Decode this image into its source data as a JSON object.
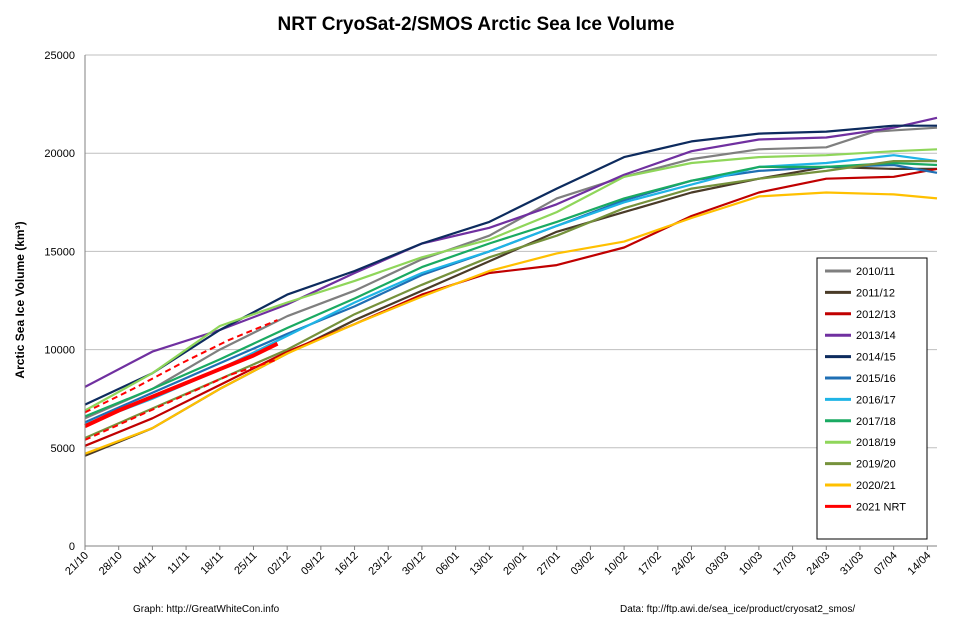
{
  "chart_data": {
    "type": "line",
    "title": "NRT CryoSat-2/SMOS Arctic Sea Ice Volume",
    "ylabel": "Arctic Sea Ice Volume (km³)",
    "xlabel": "",
    "ylim": [
      0,
      25000
    ],
    "yticks": [
      0,
      5000,
      10000,
      15000,
      20000,
      25000
    ],
    "xlim_days": [
      0,
      177
    ],
    "xticks": [
      "21/10",
      "28/10",
      "04/11",
      "11/11",
      "18/11",
      "25/11",
      "02/12",
      "09/12",
      "16/12",
      "23/12",
      "30/12",
      "06/01",
      "13/01",
      "20/01",
      "27/01",
      "03/02",
      "10/02",
      "17/02",
      "24/02",
      "03/03",
      "10/03",
      "17/03",
      "24/03",
      "31/03",
      "07/04",
      "14/04"
    ],
    "xtick_step_days": 7,
    "grid": "horizontal",
    "legend_position": "right",
    "series": [
      {
        "name": "2010/11",
        "color": "#7f7f7f",
        "style": "solid",
        "points": [
          [
            0,
            6500
          ],
          [
            14,
            8000
          ],
          [
            28,
            10000
          ],
          [
            42,
            11700
          ],
          [
            56,
            13000
          ],
          [
            70,
            14600
          ],
          [
            84,
            15800
          ],
          [
            98,
            17700
          ],
          [
            112,
            18800
          ],
          [
            126,
            19700
          ],
          [
            140,
            20200
          ],
          [
            154,
            20300
          ],
          [
            164,
            21100
          ],
          [
            177,
            21300
          ]
        ]
      },
      {
        "name": "2011/12",
        "color": "#4a3b28",
        "style": "solid",
        "points": [
          [
            0,
            4600
          ],
          [
            14,
            6000
          ],
          [
            28,
            8000
          ],
          [
            42,
            9800
          ],
          [
            56,
            11500
          ],
          [
            70,
            13000
          ],
          [
            84,
            14500
          ],
          [
            98,
            16000
          ],
          [
            112,
            17000
          ],
          [
            126,
            18000
          ],
          [
            140,
            18700
          ],
          [
            154,
            19300
          ],
          [
            168,
            19200
          ],
          [
            177,
            19200
          ]
        ]
      },
      {
        "name": "2012/13",
        "color": "#c00000",
        "style": "solid",
        "points": [
          [
            0,
            5100
          ],
          [
            14,
            6500
          ],
          [
            28,
            8200
          ],
          [
            42,
            9900
          ],
          [
            56,
            11300
          ],
          [
            70,
            12800
          ],
          [
            84,
            13900
          ],
          [
            98,
            14300
          ],
          [
            112,
            15200
          ],
          [
            126,
            16800
          ],
          [
            140,
            18000
          ],
          [
            154,
            18700
          ],
          [
            168,
            18800
          ],
          [
            177,
            19200
          ]
        ]
      },
      {
        "name": "2013/14",
        "color": "#7030a0",
        "style": "solid",
        "points": [
          [
            0,
            8100
          ],
          [
            14,
            9900
          ],
          [
            28,
            11000
          ],
          [
            42,
            12300
          ],
          [
            56,
            13900
          ],
          [
            70,
            15400
          ],
          [
            84,
            16200
          ],
          [
            98,
            17400
          ],
          [
            112,
            18900
          ],
          [
            126,
            20100
          ],
          [
            140,
            20700
          ],
          [
            154,
            20800
          ],
          [
            168,
            21300
          ],
          [
            177,
            21800
          ]
        ]
      },
      {
        "name": "2014/15",
        "color": "#0d2b5e",
        "style": "solid",
        "points": [
          [
            0,
            7200
          ],
          [
            14,
            8800
          ],
          [
            28,
            11000
          ],
          [
            42,
            12800
          ],
          [
            56,
            14000
          ],
          [
            70,
            15400
          ],
          [
            84,
            16500
          ],
          [
            98,
            18200
          ],
          [
            112,
            19800
          ],
          [
            126,
            20600
          ],
          [
            140,
            21000
          ],
          [
            154,
            21100
          ],
          [
            168,
            21400
          ],
          [
            177,
            21400
          ]
        ]
      },
      {
        "name": "2015/16",
        "color": "#1f6fb4",
        "style": "solid",
        "points": [
          [
            0,
            6300
          ],
          [
            14,
            7800
          ],
          [
            28,
            9300
          ],
          [
            42,
            10800
          ],
          [
            56,
            12200
          ],
          [
            70,
            13800
          ],
          [
            84,
            15000
          ],
          [
            98,
            16300
          ],
          [
            112,
            17600
          ],
          [
            126,
            18600
          ],
          [
            140,
            19100
          ],
          [
            154,
            19300
          ],
          [
            168,
            19400
          ],
          [
            177,
            19000
          ]
        ]
      },
      {
        "name": "2016/17",
        "color": "#1fb4e6",
        "style": "solid",
        "points": [
          [
            0,
            6200
          ],
          [
            14,
            7500
          ],
          [
            28,
            9000
          ],
          [
            42,
            10700
          ],
          [
            56,
            12400
          ],
          [
            70,
            13900
          ],
          [
            84,
            15000
          ],
          [
            98,
            16300
          ],
          [
            112,
            17500
          ],
          [
            126,
            18400
          ],
          [
            140,
            19300
          ],
          [
            154,
            19500
          ],
          [
            168,
            19900
          ],
          [
            177,
            19600
          ]
        ]
      },
      {
        "name": "2017/18",
        "color": "#1aaa62",
        "style": "solid",
        "points": [
          [
            0,
            6600
          ],
          [
            14,
            8000
          ],
          [
            28,
            9500
          ],
          [
            42,
            11100
          ],
          [
            56,
            12600
          ],
          [
            70,
            14200
          ],
          [
            84,
            15400
          ],
          [
            98,
            16500
          ],
          [
            112,
            17700
          ],
          [
            126,
            18600
          ],
          [
            140,
            19300
          ],
          [
            154,
            19300
          ],
          [
            168,
            19500
          ],
          [
            177,
            19400
          ]
        ]
      },
      {
        "name": "2018/19",
        "color": "#8fd65a",
        "style": "solid",
        "points": [
          [
            0,
            6900
          ],
          [
            14,
            8800
          ],
          [
            28,
            11200
          ],
          [
            42,
            12400
          ],
          [
            56,
            13500
          ],
          [
            70,
            14700
          ],
          [
            84,
            15600
          ],
          [
            98,
            17000
          ],
          [
            112,
            18800
          ],
          [
            126,
            19500
          ],
          [
            140,
            19800
          ],
          [
            154,
            19900
          ],
          [
            168,
            20100
          ],
          [
            177,
            20200
          ]
        ]
      },
      {
        "name": "2019/20",
        "color": "#76923c",
        "style": "solid",
        "points": [
          [
            0,
            5500
          ],
          [
            14,
            7000
          ],
          [
            28,
            8500
          ],
          [
            42,
            10000
          ],
          [
            56,
            11800
          ],
          [
            70,
            13300
          ],
          [
            84,
            14700
          ],
          [
            98,
            15800
          ],
          [
            112,
            17200
          ],
          [
            126,
            18200
          ],
          [
            140,
            18700
          ],
          [
            154,
            19100
          ],
          [
            168,
            19600
          ],
          [
            177,
            19600
          ]
        ]
      },
      {
        "name": "2020/21",
        "color": "#ffc000",
        "style": "solid",
        "points": [
          [
            0,
            4700
          ],
          [
            14,
            6000
          ],
          [
            28,
            8000
          ],
          [
            42,
            9800
          ],
          [
            56,
            11300
          ],
          [
            70,
            12700
          ],
          [
            84,
            14000
          ],
          [
            98,
            14900
          ],
          [
            112,
            15500
          ],
          [
            126,
            16700
          ],
          [
            140,
            17800
          ],
          [
            154,
            18000
          ],
          [
            168,
            17900
          ],
          [
            177,
            17700
          ]
        ]
      },
      {
        "name": "2021 NRT",
        "color": "#ff0000",
        "style": "bold",
        "points": [
          [
            0,
            6100
          ],
          [
            7,
            6900
          ],
          [
            14,
            7600
          ],
          [
            21,
            8300
          ],
          [
            28,
            9000
          ],
          [
            35,
            9700
          ],
          [
            40,
            10300
          ]
        ]
      },
      {
        "name": "",
        "color": "#ff0000",
        "style": "dashed",
        "points": [
          [
            0,
            6800
          ],
          [
            10,
            8000
          ],
          [
            20,
            9300
          ],
          [
            30,
            10500
          ],
          [
            40,
            11500
          ]
        ]
      },
      {
        "name": "",
        "color": "#ff0000",
        "style": "dashed",
        "points": [
          [
            0,
            5400
          ],
          [
            10,
            6500
          ],
          [
            20,
            7600
          ],
          [
            30,
            8700
          ],
          [
            40,
            9500
          ]
        ]
      }
    ]
  },
  "credits": {
    "left": "Graph: http://GreatWhiteCon.info",
    "right": "Data: ftp://ftp.awi.de/sea_ice/product/cryosat2_smos/"
  }
}
